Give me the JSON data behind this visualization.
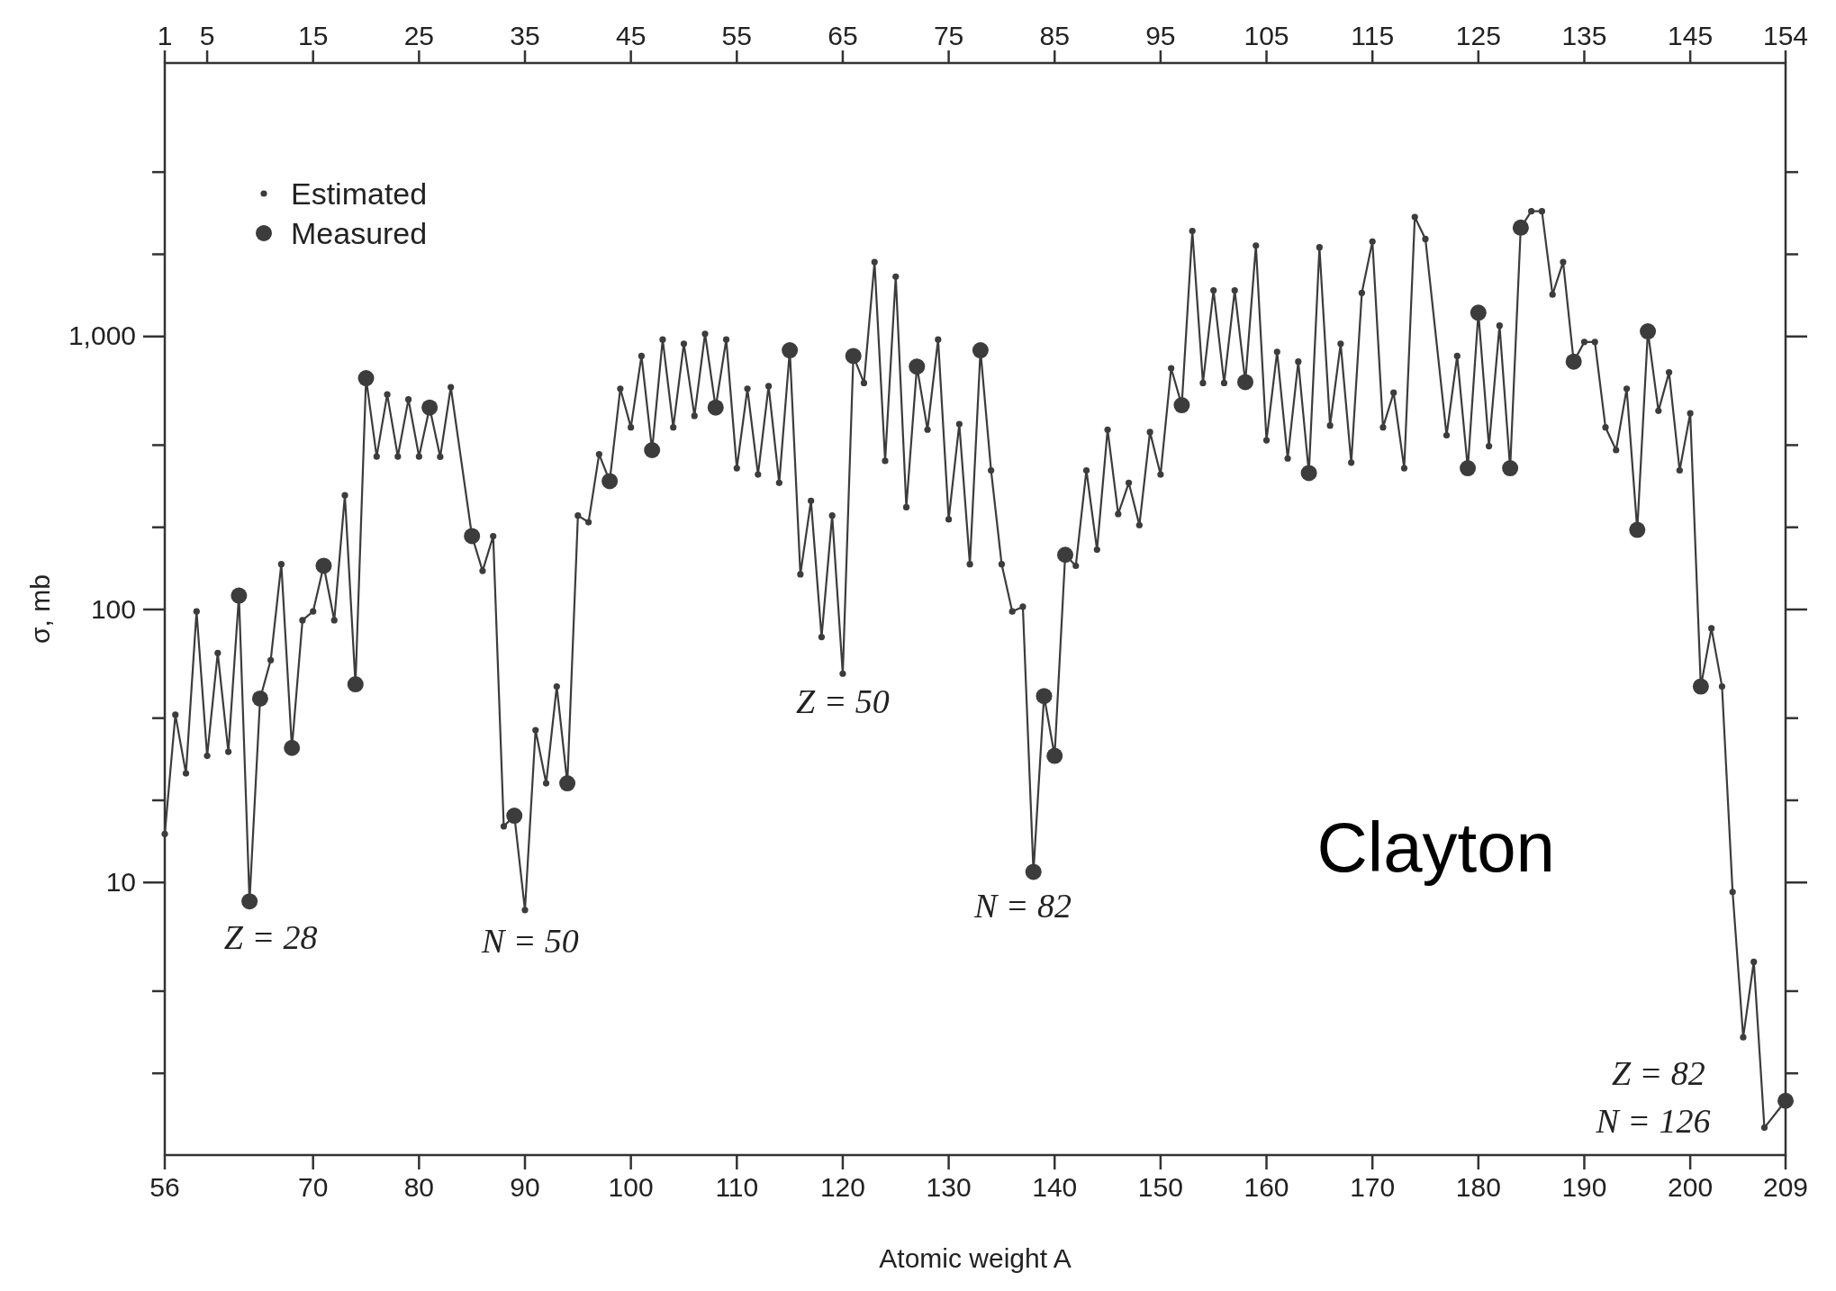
{
  "chart_data": {
    "type": "line",
    "xlabel": "Atomic weight A",
    "ylabel": "σ, mb",
    "log": "y",
    "legend": "top left",
    "marker": "circle",
    "grid": false,
    "xlim": [
      56,
      209
    ],
    "xticks": [
      56,
      70,
      80,
      90,
      100,
      110,
      120,
      130,
      140,
      150,
      160,
      170,
      180,
      190,
      200,
      209
    ],
    "x2lim": [
      1,
      154
    ],
    "x2ticks": [
      1,
      5,
      15,
      25,
      35,
      45,
      55,
      65,
      75,
      85,
      95,
      105,
      115,
      125,
      135,
      145,
      154
    ],
    "ylim": [
      1,
      10000
    ],
    "yticks": [
      {
        "value": 2,
        "label": null
      },
      {
        "value": 4,
        "label": null
      },
      10,
      {
        "value": 20,
        "label": null
      },
      {
        "value": 40,
        "label": null
      },
      100,
      {
        "value": 200,
        "label": null
      },
      {
        "value": 400,
        "label": null
      },
      {
        "value": 1000,
        "label": "1,000"
      },
      {
        "value": 2000,
        "label": null
      },
      {
        "value": 4000,
        "label": null
      }
    ],
    "annotations": [
      "Z = 28",
      "N = 50",
      "Z = 50",
      "N = 82",
      "Z = 82",
      "N = 126",
      "Clayton"
    ],
    "series": [
      {
        "marker": "none",
        "color": "#3c3c3c",
        "x": [
          56,
          57,
          58,
          59,
          60,
          61,
          62,
          63,
          64,
          65,
          66,
          67,
          68,
          69,
          70,
          71,
          72,
          73,
          74,
          75,
          76,
          77,
          78,
          79,
          80,
          81,
          82,
          83,
          85,
          86,
          87,
          88,
          89,
          90,
          91,
          92,
          93,
          94,
          95,
          96,
          97,
          98,
          99,
          100,
          101,
          102,
          103,
          104,
          105,
          106,
          107,
          108,
          109,
          110,
          111,
          112,
          113,
          114,
          115,
          116,
          117,
          118,
          119,
          120,
          121,
          122,
          123,
          124,
          125,
          126,
          127,
          128,
          129,
          130,
          131,
          132,
          133,
          134,
          135,
          136,
          137,
          138,
          139,
          140,
          141,
          142,
          143,
          144,
          145,
          146,
          147,
          148,
          149,
          150,
          151,
          152,
          153,
          154,
          155,
          156,
          157,
          158,
          159,
          160,
          161,
          162,
          163,
          164,
          165,
          166,
          167,
          168,
          169,
          170,
          171,
          172,
          173,
          174,
          175,
          177,
          178,
          179,
          180,
          181,
          182,
          183,
          184,
          185,
          186,
          187,
          188,
          189,
          190,
          191,
          192,
          193,
          194,
          195,
          196,
          197,
          198,
          199,
          200,
          201,
          202,
          203,
          204,
          205,
          206,
          207,
          209
        ],
        "values": [
          15,
          41,
          25,
          98,
          29,
          69,
          30,
          112,
          8.5,
          47,
          65,
          146,
          31,
          91,
          98,
          144,
          91,
          261,
          53,
          701,
          362,
          611,
          362,
          586,
          362,
          547,
          361,
          650,
          185,
          138,
          185,
          16,
          17.5,
          7.9,
          36,
          23,
          52,
          23,
          220,
          208,
          369,
          294,
          641,
          463,
          845,
          382,
          971,
          463,
          937,
          510,
          1019,
          547,
          971,
          328,
          641,
          311,
          655,
          290,
          887,
          134,
          249,
          79,
          220,
          58,
          845,
          673,
          1866,
          349,
          1650,
          236,
          773,
          454,
          971,
          213,
          476,
          146,
          887,
          322,
          146,
          98,
          102,
          10.9,
          48,
          29,
          158,
          144,
          322,
          165,
          454,
          223,
          290,
          203,
          445,
          311,
          762,
          558,
          2427,
          673,
          1469,
          673,
          1469,
          678,
          2144,
          415,
          875,
          356,
          806,
          315,
          2113,
          470,
          937,
          344,
          1439,
          2219,
          463,
          620,
          328,
          2729,
          2267,
          433,
          845,
          328,
          1218,
          395,
          1092,
          328,
          2495,
          2864,
          2864,
          1419,
          1866,
          806,
          951,
          951,
          463,
          382,
          641,
          195,
          1040,
          532,
          736,
          322,
          521,
          52,
          85,
          52,
          9.2,
          2.7,
          5.1,
          1.26,
          1.58
        ]
      },
      {
        "type": "scatter",
        "name": "Estimated",
        "color": "#3c3c3c",
        "x": [
          56,
          57,
          58,
          59,
          60,
          61,
          62,
          66,
          67,
          69,
          70,
          72,
          73,
          76,
          77,
          78,
          79,
          80,
          82,
          83,
          86,
          87,
          88,
          90,
          91,
          92,
          93,
          95,
          96,
          97,
          99,
          100,
          101,
          103,
          104,
          105,
          106,
          107,
          109,
          110,
          111,
          112,
          113,
          114,
          116,
          117,
          118,
          119,
          120,
          122,
          123,
          124,
          125,
          126,
          128,
          129,
          130,
          131,
          132,
          134,
          135,
          136,
          137,
          142,
          143,
          144,
          145,
          146,
          147,
          148,
          149,
          150,
          151,
          153,
          154,
          155,
          156,
          157,
          159,
          160,
          161,
          162,
          163,
          165,
          166,
          167,
          168,
          169,
          170,
          171,
          172,
          173,
          174,
          175,
          177,
          178,
          181,
          182,
          185,
          186,
          187,
          188,
          190,
          191,
          192,
          193,
          194,
          197,
          198,
          199,
          200,
          202,
          203,
          204,
          205,
          206,
          207
        ],
        "values": [
          15,
          41,
          25,
          98,
          29,
          69,
          30,
          65,
          146,
          91,
          98,
          91,
          261,
          362,
          611,
          362,
          586,
          362,
          361,
          650,
          138,
          185,
          16,
          7.9,
          36,
          23,
          52,
          220,
          208,
          369,
          641,
          463,
          845,
          971,
          463,
          937,
          510,
          1019,
          971,
          328,
          641,
          311,
          655,
          290,
          134,
          249,
          79,
          220,
          58,
          673,
          1866,
          349,
          1650,
          236,
          454,
          971,
          213,
          476,
          146,
          322,
          146,
          98,
          102,
          144,
          322,
          165,
          454,
          223,
          290,
          203,
          445,
          311,
          762,
          2427,
          673,
          1469,
          673,
          1469,
          2144,
          415,
          875,
          356,
          806,
          2113,
          470,
          937,
          344,
          1439,
          2219,
          463,
          620,
          328,
          2729,
          2267,
          433,
          845,
          395,
          1092,
          2864,
          2864,
          1419,
          1866,
          951,
          951,
          463,
          382,
          641,
          532,
          736,
          322,
          521,
          85,
          52,
          9.2,
          2.7,
          5.1,
          1.26
        ]
      },
      {
        "type": "scatter",
        "name": "Measured",
        "color": "#3c3c3c",
        "x": [
          63,
          64,
          65,
          68,
          71,
          74,
          75,
          81,
          85,
          89,
          94,
          98,
          102,
          108,
          115,
          121,
          127,
          133,
          138,
          139,
          140,
          141,
          152,
          158,
          164,
          179,
          180,
          183,
          184,
          189,
          195,
          196,
          201,
          209
        ],
        "values": [
          112,
          8.5,
          47,
          31,
          144,
          53,
          701,
          547,
          185,
          17.5,
          23,
          294,
          382,
          547,
          887,
          845,
          773,
          887,
          10.9,
          48,
          29,
          158,
          558,
          678,
          315,
          328,
          1218,
          328,
          2495,
          806,
          195,
          1040,
          52,
          1.58
        ]
      }
    ]
  }
}
